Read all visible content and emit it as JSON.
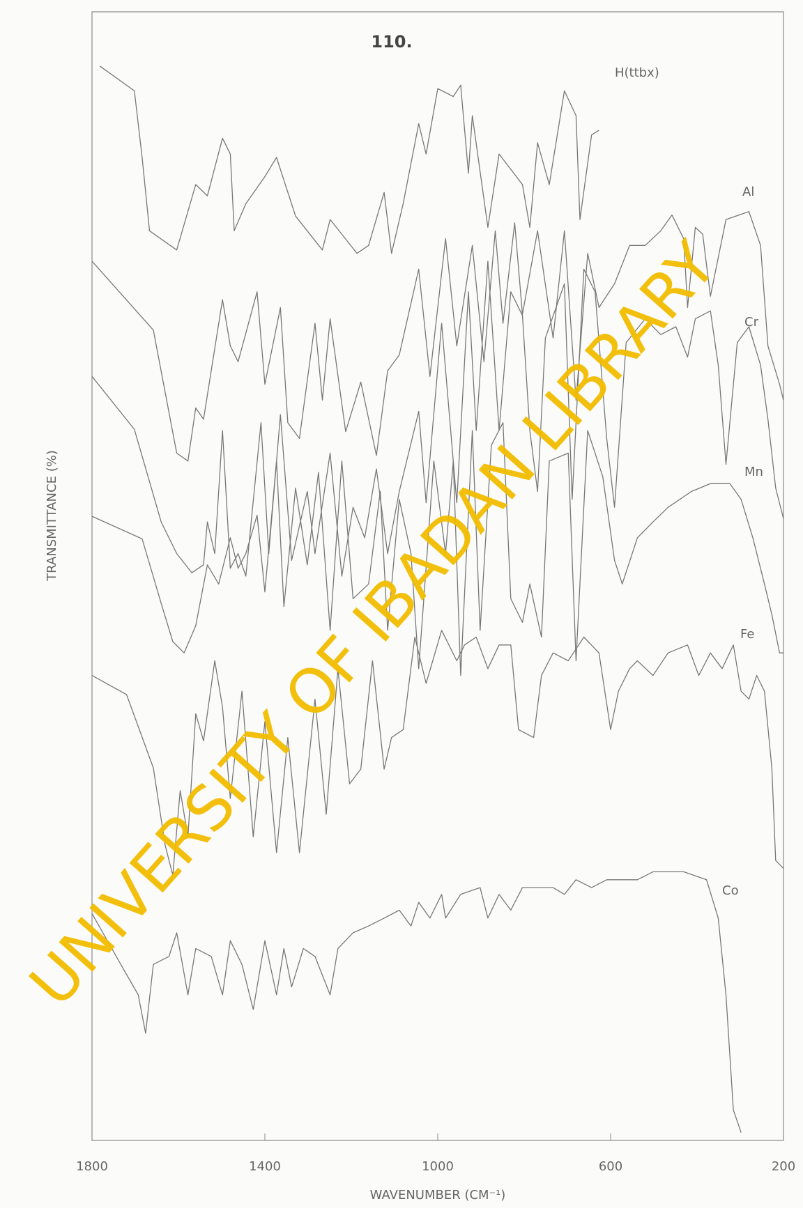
{
  "chart_data": {
    "type": "line",
    "page_number": "110.",
    "x_label": "WAVENUMBER (CM⁻¹)",
    "y_label": "TRANSMITTANCE    (%)",
    "watermark": "UNIVERSITY OF IBADAN LIBRARY",
    "xlim": [
      1800,
      200
    ],
    "ylim": [
      0,
      100
    ],
    "xticks": [
      1800,
      1400,
      1000,
      600,
      200
    ],
    "series": [
      {
        "name": "H(ttbx)",
        "color": "#777777",
        "x": [
          1782,
          1702,
          1684,
          1667,
          1604,
          1560,
          1533,
          1498,
          1480,
          1471,
          1444,
          1400,
          1373,
          1329,
          1267,
          1249,
          1222,
          1187,
          1160,
          1124,
          1107,
          1080,
          1044,
          1027,
          1000,
          964,
          947,
          929,
          920,
          884,
          858,
          804,
          787,
          769,
          742,
          707,
          680,
          671,
          644,
          627
        ],
        "values": [
          95.2,
          93.0,
          87.1,
          80.6,
          78.9,
          84.7,
          83.7,
          88.8,
          87.4,
          80.6,
          83.0,
          85.4,
          87.1,
          81.9,
          78.9,
          81.6,
          80.3,
          78.6,
          79.3,
          84.0,
          78.6,
          83.0,
          90.1,
          87.4,
          93.2,
          92.5,
          93.5,
          85.7,
          90.8,
          80.9,
          87.4,
          84.7,
          80.9,
          88.4,
          84.7,
          93.0,
          90.8,
          81.6,
          89.1,
          89.5
        ]
      },
      {
        "name": "Al",
        "color": "#777777",
        "x": [
          1800,
          1658,
          1604,
          1578,
          1560,
          1542,
          1498,
          1480,
          1462,
          1418,
          1400,
          1364,
          1347,
          1320,
          1284,
          1267,
          1249,
          1213,
          1178,
          1142,
          1116,
          1089,
          1044,
          1018,
          982,
          956,
          920,
          893,
          867,
          849,
          822,
          804,
          769,
          733,
          707,
          680,
          653,
          627,
          591,
          556,
          520,
          484,
          458,
          431,
          422,
          404,
          387,
          369,
          333,
          280,
          253,
          236,
          209,
          200
        ],
        "values": [
          77.9,
          71.8,
          60.9,
          60.2,
          64.9,
          63.9,
          74.5,
          70.4,
          69.0,
          75.2,
          67.0,
          73.8,
          63.6,
          62.2,
          72.4,
          65.6,
          72.8,
          62.8,
          67.2,
          60.7,
          68.2,
          69.6,
          77.2,
          67.7,
          79.9,
          70.4,
          79.3,
          69.0,
          80.6,
          72.4,
          81.3,
          73.2,
          80.6,
          71.1,
          80.6,
          65.6,
          78.6,
          73.8,
          75.9,
          79.3,
          79.3,
          80.6,
          82.0,
          79.9,
          73.8,
          80.9,
          80.3,
          74.8,
          81.6,
          82.3,
          79.3,
          70.4,
          67.0,
          65.6
        ]
      },
      {
        "name": "Cr",
        "color": "#777777",
        "x": [
          1800,
          1702,
          1640,
          1604,
          1569,
          1542,
          1533,
          1516,
          1498,
          1480,
          1462,
          1444,
          1409,
          1391,
          1364,
          1338,
          1302,
          1284,
          1249,
          1222,
          1196,
          1169,
          1142,
          1116,
          1089,
          1044,
          1027,
          991,
          956,
          929,
          911,
          884,
          858,
          831,
          804,
          787,
          769,
          751,
          707,
          689,
          662,
          636,
          609,
          591,
          564,
          520,
          484,
          449,
          422,
          404,
          369,
          351,
          333,
          307,
          280,
          253,
          236,
          218,
          200
        ],
        "values": [
          67.7,
          63.0,
          54.8,
          52.0,
          50.3,
          51.0,
          54.8,
          52.0,
          62.9,
          50.7,
          52.0,
          50.0,
          63.6,
          52.0,
          64.3,
          51.4,
          57.5,
          52.0,
          60.9,
          50.0,
          56.1,
          53.4,
          59.5,
          52.0,
          57.5,
          64.6,
          56.5,
          72.4,
          56.5,
          75.2,
          62.9,
          77.9,
          62.9,
          75.2,
          73.1,
          62.9,
          57.5,
          71.1,
          75.9,
          56.8,
          77.2,
          75.2,
          62.2,
          56.1,
          70.7,
          72.8,
          71.4,
          72.1,
          69.4,
          72.8,
          73.5,
          68.7,
          59.9,
          70.7,
          72.1,
          68.7,
          63.9,
          57.8,
          55.1
        ]
      },
      {
        "name": "Mn",
        "color": "#777777",
        "x": [
          1800,
          1684,
          1640,
          1613,
          1587,
          1560,
          1533,
          1507,
          1480,
          1462,
          1444,
          1418,
          1400,
          1373,
          1356,
          1329,
          1302,
          1276,
          1249,
          1222,
          1196,
          1160,
          1133,
          1116,
          1089,
          1062,
          1044,
          1009,
          982,
          964,
          947,
          920,
          902,
          876,
          849,
          831,
          804,
          787,
          760,
          742,
          698,
          680,
          653,
          618,
          591,
          573,
          538,
          502,
          467,
          413,
          369,
          324,
          298,
          271,
          244,
          227,
          209,
          200
        ],
        "values": [
          55.3,
          53.3,
          47.6,
          44.2,
          43.2,
          45.6,
          51.0,
          49.3,
          53.4,
          50.7,
          52.0,
          55.4,
          48.6,
          60.2,
          47.3,
          57.8,
          51.0,
          59.2,
          45.2,
          60.2,
          48.0,
          49.3,
          57.5,
          45.2,
          56.8,
          52.0,
          41.8,
          60.2,
          52.0,
          60.2,
          41.2,
          62.9,
          45.2,
          61.6,
          63.6,
          48.0,
          45.9,
          49.3,
          44.6,
          60.2,
          60.9,
          42.5,
          62.9,
          58.8,
          51.4,
          49.3,
          53.4,
          54.8,
          56.1,
          57.5,
          58.2,
          58.2,
          56.8,
          53.4,
          49.3,
          46.6,
          43.2,
          43.2
        ]
      },
      {
        "name": "Fe",
        "color": "#777777",
        "x": [
          1800,
          1720,
          1658,
          1631,
          1613,
          1596,
          1578,
          1560,
          1542,
          1516,
          1498,
          1480,
          1453,
          1427,
          1400,
          1373,
          1347,
          1320,
          1284,
          1258,
          1231,
          1204,
          1178,
          1151,
          1124,
          1107,
          1080,
          1053,
          1027,
          991,
          956,
          938,
          911,
          884,
          858,
          831,
          813,
          778,
          760,
          733,
          698,
          662,
          627,
          600,
          582,
          556,
          538,
          502,
          467,
          422,
          396,
          369,
          342,
          316,
          298,
          280,
          262,
          244,
          227,
          218,
          200
        ],
        "values": [
          41.2,
          39.5,
          33.0,
          26.2,
          23.5,
          31.0,
          26.9,
          37.8,
          35.4,
          42.5,
          38.4,
          30.3,
          39.8,
          26.9,
          37.1,
          25.5,
          35.7,
          25.5,
          39.1,
          28.9,
          41.8,
          31.6,
          32.9,
          42.5,
          32.9,
          35.7,
          36.4,
          44.6,
          40.5,
          45.2,
          42.5,
          43.9,
          44.6,
          41.8,
          43.9,
          43.9,
          36.4,
          35.7,
          41.2,
          43.2,
          42.5,
          44.6,
          43.2,
          36.4,
          39.8,
          41.8,
          42.5,
          41.2,
          43.2,
          43.9,
          41.2,
          43.2,
          41.8,
          43.9,
          39.8,
          39.1,
          41.2,
          39.8,
          33.0,
          24.8,
          24.1
        ]
      },
      {
        "name": "Co",
        "color": "#777777",
        "x": [
          1800,
          1729,
          1693,
          1676,
          1658,
          1622,
          1604,
          1578,
          1560,
          1524,
          1498,
          1480,
          1453,
          1427,
          1400,
          1373,
          1356,
          1338,
          1311,
          1284,
          1249,
          1231,
          1196,
          1160,
          1124,
          1089,
          1062,
          1044,
          1018,
          991,
          982,
          947,
          902,
          884,
          858,
          831,
          804,
          769,
          733,
          707,
          680,
          644,
          609,
          573,
          538,
          502,
          467,
          431,
          378,
          351,
          333,
          324,
          316,
          298
        ],
        "values": [
          20.1,
          15.3,
          12.9,
          9.5,
          15.6,
          16.3,
          18.4,
          12.9,
          17.0,
          16.3,
          12.9,
          17.7,
          15.6,
          11.6,
          17.7,
          12.9,
          17.0,
          13.6,
          17.0,
          16.3,
          12.9,
          17.0,
          18.4,
          19.0,
          19.7,
          20.4,
          19.0,
          21.1,
          19.7,
          21.8,
          19.7,
          21.8,
          22.4,
          19.7,
          21.8,
          20.4,
          22.4,
          22.4,
          22.4,
          21.8,
          23.1,
          22.4,
          23.1,
          23.1,
          23.1,
          23.8,
          23.8,
          23.8,
          23.1,
          19.7,
          12.9,
          7.5,
          2.7,
          0.7
        ]
      }
    ]
  }
}
